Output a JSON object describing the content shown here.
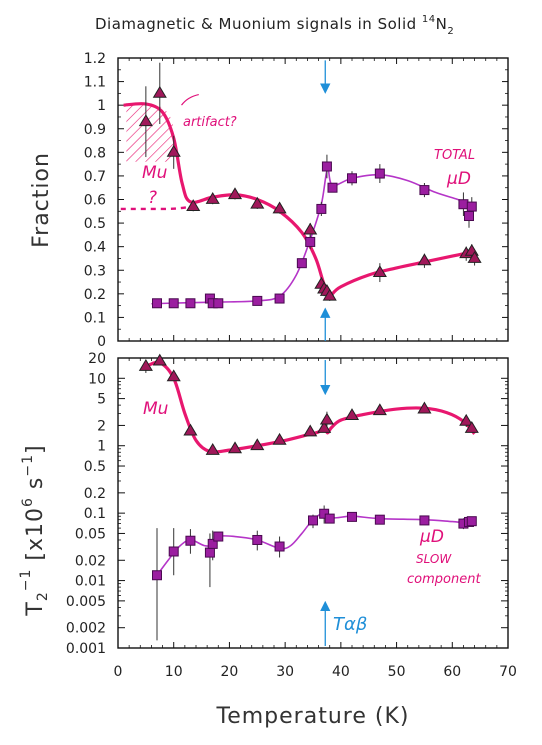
{
  "chart_data": [
    {
      "type": "scatter",
      "title": "Diamagnetic & Muonium signals in Solid ¹⁴N₂",
      "xlabel": "Temperature (K)",
      "ylabel": "Fraction",
      "xlim": [
        0,
        70
      ],
      "ylim": [
        0,
        1.2
      ],
      "x_ticks": [
        "0",
        "10",
        "20",
        "30",
        "40",
        "50",
        "60",
        "70"
      ],
      "y_ticks": [
        "0",
        "0.1",
        "0.2",
        "0.3",
        "0.4",
        "0.5",
        "0.6",
        "0.7",
        "0.8",
        "0.9",
        "1",
        "1.1",
        "1.2"
      ],
      "series": [
        {
          "name": "Mu",
          "marker": "triangle",
          "color": "#b0196e",
          "x": [
            5.0,
            7.5,
            10.0,
            13.5,
            17.0,
            21.0,
            25.0,
            29.0,
            34.5,
            36.5,
            37.0,
            37.5,
            38.0,
            47.0,
            55.0,
            62.5,
            63.5,
            64.0
          ],
          "y": [
            0.93,
            1.05,
            0.8,
            0.57,
            0.6,
            0.62,
            0.58,
            0.56,
            0.47,
            0.24,
            0.22,
            0.21,
            0.19,
            0.29,
            0.34,
            0.37,
            0.38,
            0.35
          ],
          "err": [
            0.15,
            0.13,
            0.07,
            0.02,
            0.02,
            0.02,
            0.02,
            0.02,
            0.03,
            0.03,
            0.03,
            0.02,
            0.02,
            0.04,
            0.03,
            0.03,
            0.03,
            0.03
          ]
        },
        {
          "name": "μD (TOTAL)",
          "marker": "square",
          "color": "#a020a0",
          "x": [
            7.0,
            10.0,
            13.0,
            16.5,
            17.0,
            18.0,
            25.0,
            29.0,
            33.0,
            34.5,
            36.5,
            37.5,
            38.5,
            42.0,
            47.0,
            55.0,
            62.0,
            63.0,
            63.5
          ],
          "y": [
            0.16,
            0.16,
            0.16,
            0.18,
            0.16,
            0.16,
            0.17,
            0.18,
            0.33,
            0.42,
            0.56,
            0.74,
            0.65,
            0.69,
            0.71,
            0.64,
            0.58,
            0.53,
            0.57
          ],
          "err": [
            0.02,
            0.01,
            0.01,
            0.02,
            0.02,
            0.01,
            0.01,
            0.01,
            0.02,
            0.03,
            0.03,
            0.05,
            0.02,
            0.03,
            0.04,
            0.03,
            0.05,
            0.05,
            0.04
          ]
        }
      ],
      "annotations": [
        "Mu",
        "artifact?",
        "?",
        "TOTAL",
        "μD"
      ],
      "grid": false
    },
    {
      "type": "scatter",
      "xlabel": "Temperature (K)",
      "ylabel": "T₂⁻¹ [x10⁶ s⁻¹]",
      "y_scale": "log",
      "xlim": [
        0,
        70
      ],
      "ylim": [
        0.001,
        20
      ],
      "x_ticks": [
        "0",
        "10",
        "20",
        "30",
        "40",
        "50",
        "60",
        "70"
      ],
      "y_ticks": [
        "0.001",
        "0.002",
        "0.005",
        "0.01",
        "0.02",
        "0.05",
        "0.1",
        "0.2",
        "0.5",
        "1",
        "2",
        "5",
        "10",
        "20"
      ],
      "series": [
        {
          "name": "Mu",
          "marker": "triangle",
          "color": "#b0196e",
          "x": [
            5.0,
            7.5,
            10.0,
            13.0,
            17.0,
            21.0,
            25.0,
            29.0,
            34.5,
            37.0,
            37.5,
            42.0,
            47.0,
            55.0,
            62.5,
            63.5
          ],
          "y": [
            15.0,
            18.0,
            10.5,
            1.65,
            0.85,
            0.9,
            1.0,
            1.2,
            1.6,
            1.8,
            2.4,
            2.8,
            3.3,
            3.5,
            2.3,
            1.8
          ]
        },
        {
          "name": "μD SLOW component",
          "marker": "square",
          "color": "#a020a0",
          "x": [
            7.0,
            10.0,
            13.0,
            16.5,
            17.0,
            18.0,
            25.0,
            29.0,
            35.0,
            37.0,
            38.0,
            42.0,
            47.0,
            55.0,
            62.0,
            63.0,
            63.5
          ],
          "y": [
            0.012,
            0.027,
            0.039,
            0.026,
            0.035,
            0.045,
            0.04,
            0.032,
            0.078,
            0.098,
            0.083,
            0.088,
            0.08,
            0.078,
            0.07,
            0.074,
            0.076
          ]
        }
      ],
      "annotations": [
        "Mu",
        "μD",
        "SLOW",
        "component",
        "Tαβ"
      ],
      "grid": false
    }
  ],
  "labels": {
    "title_main": "Diamagnetic & Muonium signals in Solid ",
    "title_sup": "14",
    "title_n": "N",
    "title_sub": "2",
    "top_ylabel": "Fraction",
    "xlabel": "Temperature (K)",
    "artifact": "artifact?",
    "mu_top": "Mu",
    "question": "?",
    "total": "TOTAL",
    "muD_top": "μD",
    "mu_bottom": "Mu",
    "muD_bottom": "μD",
    "slow": "SLOW",
    "component": "component",
    "t_alpha_beta": "Tαβ"
  },
  "colors": {
    "curve_mu": "#e8176f",
    "curve_mud": "#b535c8",
    "marker_fill": "#9b1ea0",
    "triangle_fill": "#a0185a",
    "annotation": "#e0107a",
    "arrow": "#1f8fd8"
  }
}
